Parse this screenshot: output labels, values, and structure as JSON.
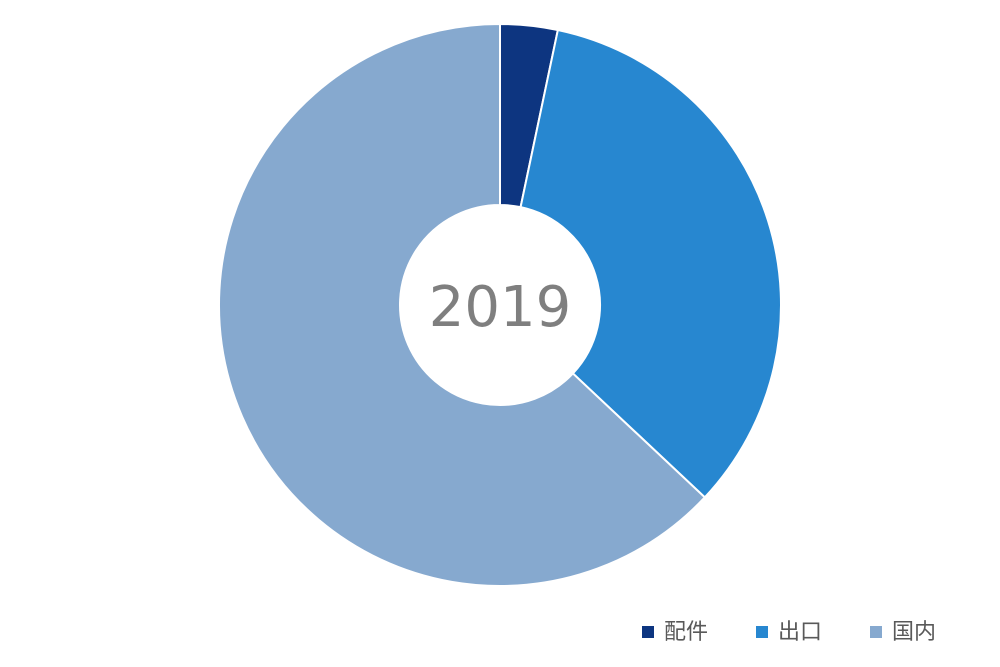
{
  "chart_data": {
    "type": "donut",
    "title": "2019",
    "categories": [
      "配件",
      "出口",
      "国内"
    ],
    "values": [
      3.3,
      33.7,
      63
    ],
    "colors": [
      "#0d3580",
      "#2787d0",
      "#86a9cf"
    ],
    "legend": "bottom-right"
  }
}
